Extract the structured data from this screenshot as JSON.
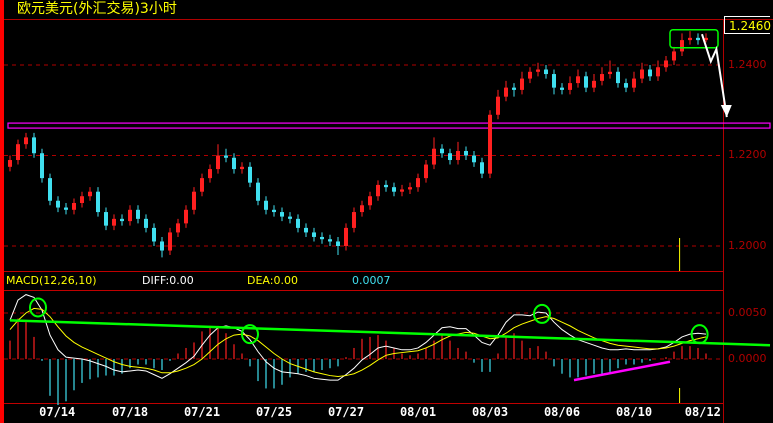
{
  "title": "欧元美元(外汇交易)3小时",
  "last_price_label": "1.2460",
  "macd_header": {
    "name": "MACD(12,26,10)",
    "diff": "DIFF:0.00",
    "dea": "DEA:0.00",
    "macd": "0.0007"
  },
  "colors": {
    "up": "#ff2020",
    "down": "#40e0f0",
    "diff": "#ffffff",
    "dea": "#ffff00",
    "grid": "#b00000",
    "trendline": "#00ff00",
    "support": "#ff00ff",
    "arrow": "#ffffff"
  },
  "chart_data": [
    {
      "type": "candlestick",
      "price_ticks": [
        "1.2400",
        "1.2200",
        "1.2000"
      ],
      "ylim": [
        1.194,
        1.252
      ],
      "grid": "dashed horizontal",
      "candles": [
        [
          1.2175,
          1.22,
          1.2165,
          1.219
        ],
        [
          1.219,
          1.2235,
          1.218,
          1.2225
        ],
        [
          1.2225,
          1.225,
          1.2215,
          1.224
        ],
        [
          1.224,
          1.225,
          1.2195,
          1.2205
        ],
        [
          1.2205,
          1.2215,
          1.214,
          1.215
        ],
        [
          1.215,
          1.216,
          1.209,
          1.21
        ],
        [
          1.21,
          1.211,
          1.2075,
          1.2085
        ],
        [
          1.2085,
          1.2095,
          1.207,
          1.208
        ],
        [
          1.208,
          1.2105,
          1.207,
          1.2095
        ],
        [
          1.2095,
          1.212,
          1.2085,
          1.211
        ],
        [
          1.211,
          1.213,
          1.21,
          1.212
        ],
        [
          1.212,
          1.213,
          1.2065,
          1.2075
        ],
        [
          1.2075,
          1.2085,
          1.2035,
          1.2045
        ],
        [
          1.2045,
          1.207,
          1.2035,
          1.206
        ],
        [
          1.206,
          1.207,
          1.2045,
          1.2055
        ],
        [
          1.2055,
          1.209,
          1.2045,
          1.208
        ],
        [
          1.208,
          1.209,
          1.205,
          1.206
        ],
        [
          1.206,
          1.207,
          1.203,
          1.204
        ],
        [
          1.204,
          1.205,
          1.2,
          1.201
        ],
        [
          1.201,
          1.202,
          1.1975,
          1.199
        ],
        [
          1.199,
          1.204,
          1.198,
          1.203
        ],
        [
          1.203,
          1.206,
          1.202,
          1.205
        ],
        [
          1.205,
          1.209,
          1.204,
          1.208
        ],
        [
          1.208,
          1.213,
          1.207,
          1.212
        ],
        [
          1.212,
          1.216,
          1.211,
          1.215
        ],
        [
          1.215,
          1.218,
          1.214,
          1.217
        ],
        [
          1.217,
          1.2225,
          1.216,
          1.22
        ],
        [
          1.22,
          1.2215,
          1.2185,
          1.2195
        ],
        [
          1.2195,
          1.2205,
          1.216,
          1.217
        ],
        [
          1.217,
          1.2185,
          1.216,
          1.2175
        ],
        [
          1.2175,
          1.2185,
          1.213,
          1.214
        ],
        [
          1.214,
          1.215,
          1.209,
          1.21
        ],
        [
          1.21,
          1.211,
          1.207,
          1.208
        ],
        [
          1.208,
          1.209,
          1.2065,
          1.2075
        ],
        [
          1.2075,
          1.2085,
          1.2055,
          1.2065
        ],
        [
          1.2065,
          1.2075,
          1.205,
          1.206
        ],
        [
          1.206,
          1.207,
          1.203,
          1.204
        ],
        [
          1.204,
          1.205,
          1.202,
          1.203
        ],
        [
          1.203,
          1.204,
          1.201,
          1.202
        ],
        [
          1.202,
          1.203,
          1.2005,
          1.2015
        ],
        [
          1.2015,
          1.2025,
          1.2,
          1.201
        ],
        [
          1.201,
          1.202,
          1.198,
          1.2
        ],
        [
          1.2,
          1.205,
          1.199,
          1.204
        ],
        [
          1.204,
          1.2085,
          1.203,
          1.2075
        ],
        [
          1.2075,
          1.21,
          1.2065,
          1.209
        ],
        [
          1.209,
          1.212,
          1.208,
          1.211
        ],
        [
          1.211,
          1.2145,
          1.21,
          1.2135
        ],
        [
          1.2135,
          1.2145,
          1.212,
          1.213
        ],
        [
          1.213,
          1.214,
          1.211,
          1.212
        ],
        [
          1.212,
          1.2135,
          1.211,
          1.2125
        ],
        [
          1.2125,
          1.214,
          1.2115,
          1.213
        ],
        [
          1.213,
          1.216,
          1.212,
          1.215
        ],
        [
          1.215,
          1.219,
          1.214,
          1.218
        ],
        [
          1.218,
          1.224,
          1.217,
          1.2215
        ],
        [
          1.2215,
          1.2225,
          1.2195,
          1.2205
        ],
        [
          1.2205,
          1.2215,
          1.218,
          1.219
        ],
        [
          1.219,
          1.223,
          1.218,
          1.221
        ],
        [
          1.221,
          1.222,
          1.219,
          1.22
        ],
        [
          1.22,
          1.221,
          1.2175,
          1.2185
        ],
        [
          1.2185,
          1.2195,
          1.215,
          1.216
        ],
        [
          1.216,
          1.23,
          1.215,
          1.229
        ],
        [
          1.229,
          1.2345,
          1.228,
          1.233
        ],
        [
          1.233,
          1.2365,
          1.232,
          1.235
        ],
        [
          1.235,
          1.236,
          1.233,
          1.2345
        ],
        [
          1.2345,
          1.2385,
          1.2335,
          1.237
        ],
        [
          1.237,
          1.2395,
          1.236,
          1.2385
        ],
        [
          1.2385,
          1.2405,
          1.2375,
          1.239
        ],
        [
          1.239,
          1.24,
          1.237,
          1.238
        ],
        [
          1.238,
          1.239,
          1.2335,
          1.235
        ],
        [
          1.235,
          1.236,
          1.2335,
          1.2345
        ],
        [
          1.2345,
          1.2375,
          1.2335,
          1.236
        ],
        [
          1.236,
          1.239,
          1.235,
          1.2375
        ],
        [
          1.2375,
          1.2385,
          1.234,
          1.235
        ],
        [
          1.235,
          1.238,
          1.234,
          1.2365
        ],
        [
          1.2365,
          1.2395,
          1.2355,
          1.238
        ],
        [
          1.238,
          1.241,
          1.237,
          1.2385
        ],
        [
          1.2385,
          1.2395,
          1.235,
          1.236
        ],
        [
          1.236,
          1.237,
          1.234,
          1.235
        ],
        [
          1.235,
          1.2385,
          1.234,
          1.237
        ],
        [
          1.237,
          1.2405,
          1.236,
          1.239
        ],
        [
          1.239,
          1.24,
          1.2365,
          1.2375
        ],
        [
          1.2375,
          1.241,
          1.2365,
          1.2395
        ],
        [
          1.2395,
          1.242,
          1.2385,
          1.241
        ],
        [
          1.241,
          1.244,
          1.24,
          1.243
        ],
        [
          1.243,
          1.247,
          1.242,
          1.2455
        ],
        [
          1.2455,
          1.2475,
          1.2445,
          1.246
        ],
        [
          1.246,
          1.247,
          1.2445,
          1.2455
        ],
        [
          1.2455,
          1.247,
          1.245,
          1.246
        ]
      ],
      "support_level": 1.2265,
      "highlight_box": {
        "index": [
          82.5,
          88.5
        ],
        "price": [
          1.2438,
          1.2478
        ]
      },
      "arrow": [
        [
          86.5,
          1.2468
        ],
        [
          87.6,
          1.2408
        ],
        [
          88.3,
          1.2435
        ],
        [
          89.6,
          1.2285
        ]
      ],
      "cursor_index": 83.7
    },
    {
      "type": "macd",
      "macd_ticks": [
        "0.0050",
        "0.0000"
      ],
      "ylim": [
        -0.0048,
        0.0083
      ],
      "diff": [
        0.0042,
        0.0064,
        0.007,
        0.0067,
        0.0053,
        0.0026,
        0.001,
        0.0002,
        0.0001,
        0.0,
        -0.0002,
        -0.0005,
        -0.0008,
        -0.0012,
        -0.0014,
        -0.0013,
        -0.0012,
        -0.0013,
        -0.0017,
        -0.0021,
        -0.0016,
        -0.001,
        -0.0004,
        0.0003,
        0.0015,
        0.0026,
        0.0034,
        0.0036,
        0.0034,
        0.003,
        0.0021,
        0.0008,
        -0.0003,
        -0.001,
        -0.0014,
        -0.0015,
        -0.0016,
        -0.0018,
        -0.0021,
        -0.0022,
        -0.0023,
        -0.0023,
        -0.0017,
        -0.001,
        -0.0001,
        0.0005,
        0.0012,
        0.0014,
        0.0012,
        0.001,
        0.001,
        0.0012,
        0.0018,
        0.0026,
        0.0034,
        0.0035,
        0.0033,
        0.0033,
        0.0026,
        0.0018,
        0.0015,
        0.0026,
        0.004,
        0.0048,
        0.0048,
        0.0047,
        0.0051,
        0.005,
        0.004,
        0.0032,
        0.0026,
        0.0021,
        0.0018,
        0.0015,
        0.0012,
        0.001,
        0.001,
        0.0011,
        0.001,
        0.001,
        0.001,
        0.0011,
        0.0013,
        0.0018,
        0.0024,
        0.0027,
        0.0028,
        0.0027
      ],
      "dea": [
        0.0032,
        0.0042,
        0.005,
        0.0055,
        0.0054,
        0.0046,
        0.0035,
        0.0025,
        0.0018,
        0.0013,
        0.0009,
        0.0005,
        0.0001,
        -0.0003,
        -0.0006,
        -0.0008,
        -0.0009,
        -0.001,
        -0.0012,
        -0.0015,
        -0.0015,
        -0.0013,
        -0.001,
        -0.0006,
        0.0,
        0.0008,
        0.0016,
        0.0022,
        0.0026,
        0.0027,
        0.0025,
        0.002,
        0.0013,
        0.0006,
        0.0,
        -0.0005,
        -0.0008,
        -0.0011,
        -0.0014,
        -0.0016,
        -0.0018,
        -0.0019,
        -0.0018,
        -0.0016,
        -0.0012,
        -0.0007,
        -0.0001,
        0.0004,
        0.0006,
        0.0007,
        0.0008,
        0.0009,
        0.0012,
        0.0016,
        0.0021,
        0.0025,
        0.0027,
        0.0029,
        0.0028,
        0.0025,
        0.0022,
        0.0023,
        0.0028,
        0.0034,
        0.0038,
        0.0041,
        0.0044,
        0.0046,
        0.0044,
        0.004,
        0.0036,
        0.0031,
        0.0027,
        0.0023,
        0.002,
        0.0017,
        0.0015,
        0.0014,
        0.0013,
        0.0012,
        0.0011,
        0.0011,
        0.0012,
        0.0014,
        0.0017,
        0.002,
        0.0022,
        0.0024
      ],
      "trendline": [
        [
          0,
          0.0042
        ],
        [
          95,
          0.0015
        ]
      ],
      "support_line": [
        [
          70.5,
          -0.0023
        ],
        [
          82.5,
          -0.0003
        ]
      ],
      "circles": [
        [
          3.5,
          0.0056
        ],
        [
          30,
          0.0027
        ],
        [
          66.5,
          0.0049
        ],
        [
          86.2,
          0.0027
        ]
      ]
    }
  ],
  "date_ticks": [
    {
      "label": "07/14",
      "index": 5.9
    },
    {
      "label": "07/18",
      "index": 15
    },
    {
      "label": "07/21",
      "index": 24
    },
    {
      "label": "07/25",
      "index": 33
    },
    {
      "label": "07/27",
      "index": 42
    },
    {
      "label": "08/01",
      "index": 51
    },
    {
      "label": "08/03",
      "index": 60
    },
    {
      "label": "08/06",
      "index": 69
    },
    {
      "label": "08/10",
      "index": 78
    },
    {
      "label": "08/12",
      "index": 86.6
    }
  ]
}
